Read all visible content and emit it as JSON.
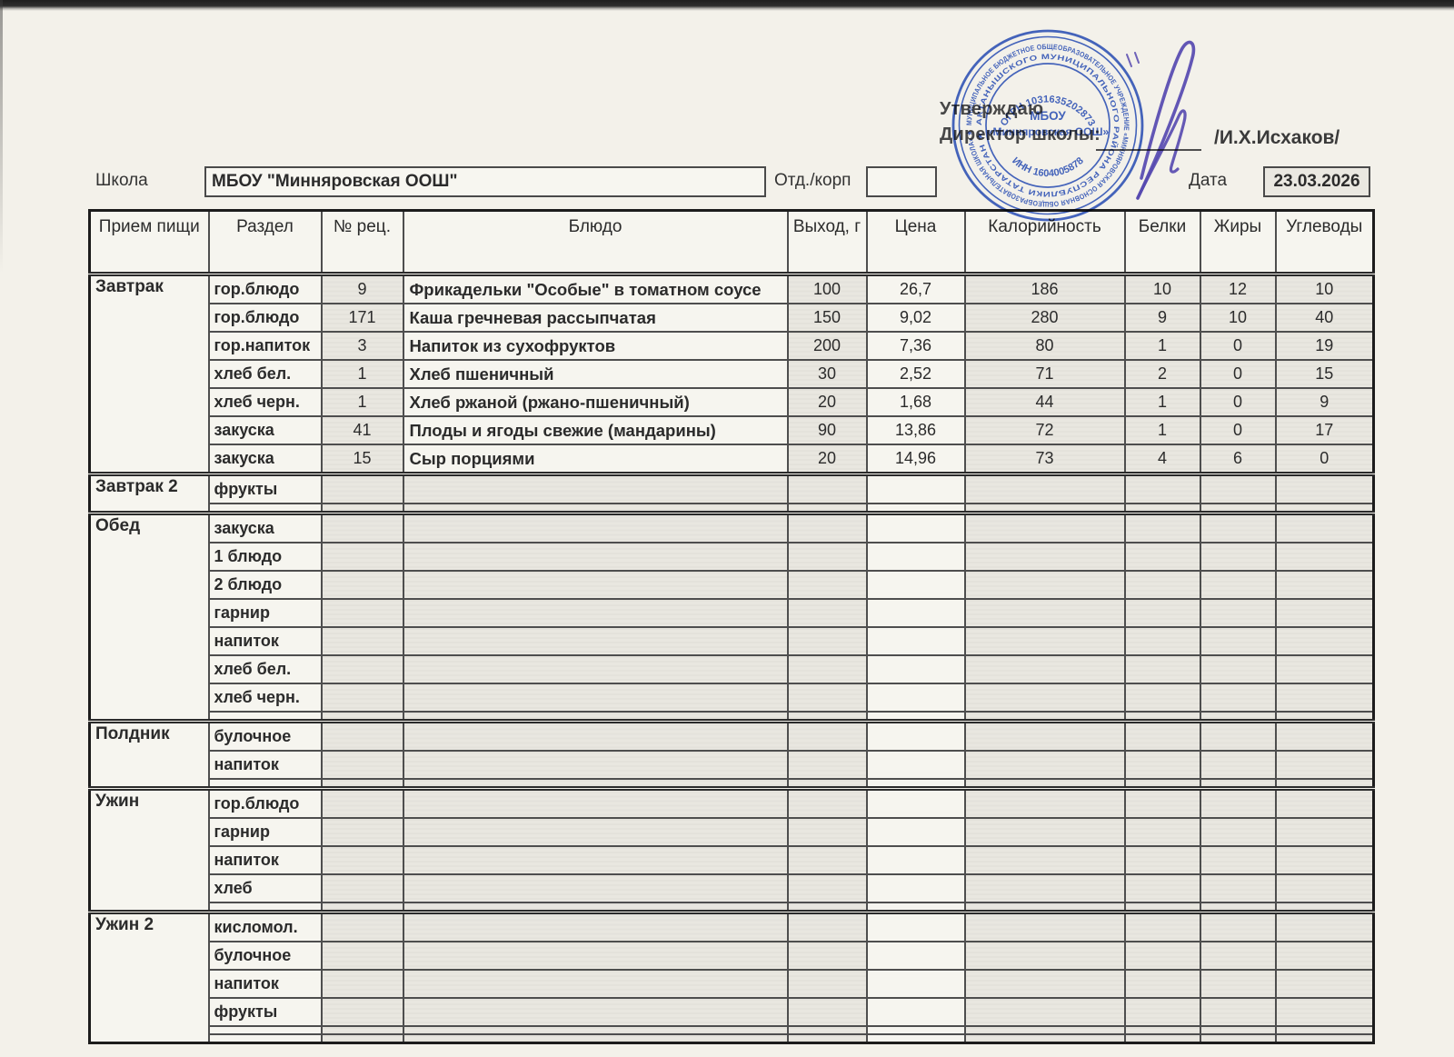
{
  "approval": {
    "line1": "Утверждаю",
    "line2": "Директор школы:",
    "signatory": "/И.Х.Исхаков/"
  },
  "form": {
    "school_label": "Школа",
    "school_value": "МБОУ \"Минняровская ООШ\"",
    "dept_label": "Отд./корп",
    "dept_value": "",
    "date_label": "Дата",
    "date_value": "23.03.2026"
  },
  "stamp": {
    "ring_outer": "МУНИЦИПАЛЬНОЕ БЮДЖЕТНОЕ ОБЩЕОБРАЗОВАТЕЛЬНОЕ УЧРЕЖДЕНИЕ «МИННЯРОВСКАЯ ОСНОВНАЯ ОБЩЕОБРАЗОВАТЕЛЬНАЯ ШКОЛА» ★",
    "ring_inner": "АКТАНЫШСКОГО МУНИЦИПАЛЬНОГО РАЙОНА РЕСПУБЛИКИ ТАТАРСТАН ★",
    "ogrn": "ОГРН 1031635202873",
    "inn": "ИНН 1604005878",
    "center_line1": "МБОУ",
    "center_line2": "«Минняровская ООШ»"
  },
  "colors": {
    "stamp_ink": "#2d54c4",
    "signature_ink": "#5a4dc0"
  },
  "table": {
    "headers": [
      "Прием пищи",
      "Раздел",
      "№ рец.",
      "Блюдо",
      "Выход, г",
      "Цена",
      "Калорийность",
      "Белки",
      "Жиры",
      "Углеводы"
    ],
    "sections": [
      {
        "meal": "Завтрак",
        "blank_rows": 0,
        "rows": [
          {
            "razdel": "гор.блюдо",
            "rec": "9",
            "dish": "Фрикадельки \"Особые\" в томатном соусе",
            "out": "100",
            "price": "26,7",
            "kcal": "186",
            "protein": "10",
            "fat": "12",
            "carbs": "10"
          },
          {
            "razdel": "гор.блюдо",
            "rec": "171",
            "dish": "Каша гречневая рассыпчатая",
            "out": "150",
            "price": "9,02",
            "kcal": "280",
            "protein": "9",
            "fat": "10",
            "carbs": "40"
          },
          {
            "razdel": "гор.напиток",
            "rec": "3",
            "dish": "Напиток из  сухофруктов",
            "out": "200",
            "price": "7,36",
            "kcal": "80",
            "protein": "1",
            "fat": "0",
            "carbs": "19"
          },
          {
            "razdel": "хлеб бел.",
            "rec": "1",
            "dish": "Хлеб пшеничный",
            "out": "30",
            "price": "2,52",
            "kcal": "71",
            "protein": "2",
            "fat": "0",
            "carbs": "15"
          },
          {
            "razdel": "хлеб черн.",
            "rec": "1",
            "dish": "Хлеб ржаной (ржано-пшеничный)",
            "out": "20",
            "price": "1,68",
            "kcal": "44",
            "protein": "1",
            "fat": "0",
            "carbs": "9"
          },
          {
            "razdel": "закуска",
            "rec": "41",
            "dish": "Плоды и ягоды свежие (мандарины)",
            "out": "90",
            "price": "13,86",
            "kcal": "72",
            "protein": "1",
            "fat": "0",
            "carbs": "17"
          },
          {
            "razdel": "закуска",
            "rec": "15",
            "dish": "Сыр порциями",
            "out": "20",
            "price": "14,96",
            "kcal": "73",
            "protein": "4",
            "fat": "6",
            "carbs": "0"
          }
        ]
      },
      {
        "meal": "Завтрак 2",
        "blank_rows": 1,
        "rows": [
          {
            "razdel": "фрукты",
            "rec": "",
            "dish": "",
            "out": "",
            "price": "",
            "kcal": "",
            "protein": "",
            "fat": "",
            "carbs": ""
          }
        ]
      },
      {
        "meal": "Обед",
        "blank_rows": 1,
        "rows": [
          {
            "razdel": "закуска",
            "rec": "",
            "dish": "",
            "out": "",
            "price": "",
            "kcal": "",
            "protein": "",
            "fat": "",
            "carbs": ""
          },
          {
            "razdel": "1 блюдо",
            "rec": "",
            "dish": "",
            "out": "",
            "price": "",
            "kcal": "",
            "protein": "",
            "fat": "",
            "carbs": ""
          },
          {
            "razdel": "2 блюдо",
            "rec": "",
            "dish": "",
            "out": "",
            "price": "",
            "kcal": "",
            "protein": "",
            "fat": "",
            "carbs": ""
          },
          {
            "razdel": "гарнир",
            "rec": "",
            "dish": "",
            "out": "",
            "price": "",
            "kcal": "",
            "protein": "",
            "fat": "",
            "carbs": ""
          },
          {
            "razdel": "напиток",
            "rec": "",
            "dish": "",
            "out": "",
            "price": "",
            "kcal": "",
            "protein": "",
            "fat": "",
            "carbs": ""
          },
          {
            "razdel": "хлеб бел.",
            "rec": "",
            "dish": "",
            "out": "",
            "price": "",
            "kcal": "",
            "protein": "",
            "fat": "",
            "carbs": ""
          },
          {
            "razdel": "хлеб черн.",
            "rec": "",
            "dish": "",
            "out": "",
            "price": "",
            "kcal": "",
            "protein": "",
            "fat": "",
            "carbs": ""
          }
        ]
      },
      {
        "meal": "Полдник",
        "blank_rows": 1,
        "rows": [
          {
            "razdel": "булочное",
            "rec": "",
            "dish": "",
            "out": "",
            "price": "",
            "kcal": "",
            "protein": "",
            "fat": "",
            "carbs": ""
          },
          {
            "razdel": "напиток",
            "rec": "",
            "dish": "",
            "out": "",
            "price": "",
            "kcal": "",
            "protein": "",
            "fat": "",
            "carbs": ""
          }
        ]
      },
      {
        "meal": "Ужин",
        "blank_rows": 1,
        "rows": [
          {
            "razdel": "гор.блюдо",
            "rec": "",
            "dish": "",
            "out": "",
            "price": "",
            "kcal": "",
            "protein": "",
            "fat": "",
            "carbs": ""
          },
          {
            "razdel": "гарнир",
            "rec": "",
            "dish": "",
            "out": "",
            "price": "",
            "kcal": "",
            "protein": "",
            "fat": "",
            "carbs": ""
          },
          {
            "razdel": "напиток",
            "rec": "",
            "dish": "",
            "out": "",
            "price": "",
            "kcal": "",
            "protein": "",
            "fat": "",
            "carbs": ""
          },
          {
            "razdel": "хлеб",
            "rec": "",
            "dish": "",
            "out": "",
            "price": "",
            "kcal": "",
            "protein": "",
            "fat": "",
            "carbs": ""
          }
        ]
      },
      {
        "meal": "Ужин 2",
        "blank_rows": 2,
        "rows": [
          {
            "razdel": "кисломол.",
            "rec": "",
            "dish": "",
            "out": "",
            "price": "",
            "kcal": "",
            "protein": "",
            "fat": "",
            "carbs": ""
          },
          {
            "razdel": "булочное",
            "rec": "",
            "dish": "",
            "out": "",
            "price": "",
            "kcal": "",
            "protein": "",
            "fat": "",
            "carbs": ""
          },
          {
            "razdel": "напиток",
            "rec": "",
            "dish": "",
            "out": "",
            "price": "",
            "kcal": "",
            "protein": "",
            "fat": "",
            "carbs": ""
          },
          {
            "razdel": "фрукты",
            "rec": "",
            "dish": "",
            "out": "",
            "price": "",
            "kcal": "",
            "protein": "",
            "fat": "",
            "carbs": ""
          }
        ]
      }
    ]
  }
}
